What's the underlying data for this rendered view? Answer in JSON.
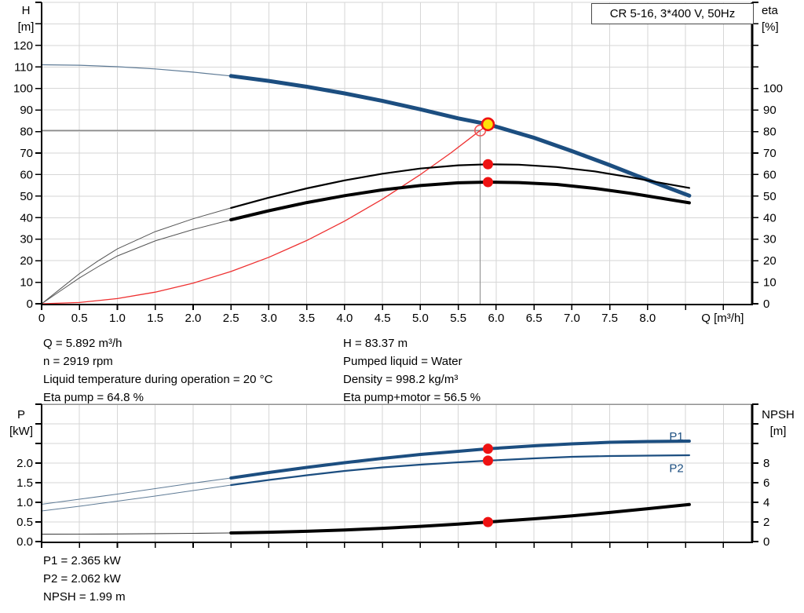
{
  "title_box": {
    "label": "CR 5-16, 3*400 V, 50Hz"
  },
  "axis_corner_labels": {
    "h": "H",
    "h_unit": "[m]",
    "eta": "eta",
    "eta_unit": "[%]",
    "p": "P",
    "p_unit": "[kW]",
    "npsh": "NPSH",
    "npsh_unit": "[m]"
  },
  "readouts": {
    "mid_left": [
      "Q = 5.892 m³/h",
      "n = 2919 rpm",
      "Liquid temperature during operation = 20 °C",
      "Eta pump = 64.8 %"
    ],
    "mid_right": [
      "H = 83.37 m",
      "Pumped liquid = Water",
      "Density = 998.2 kg/m³",
      "Eta pump+motor = 56.5 %"
    ],
    "bottom": [
      "P1 = 2.365 kW",
      "P2 = 2.062 kW",
      "NPSH = 1.99 m"
    ]
  },
  "colors": {
    "curve_blue": "#1c4e80",
    "thin_blue": "#5f7b96",
    "curve_black": "#000000",
    "thin_gray": "#555555",
    "system_red": "#ee3030",
    "dot_red": "#ee1212",
    "duty_yellow": "#ffe10a",
    "grid": "#d6d6d6",
    "crosshair": "#8a8a8a",
    "axis": "#000000"
  },
  "chart_data": [
    {
      "type": "line",
      "title": "CR 5-16, 3*400 V, 50Hz",
      "xlabel": "Q [m³/h]",
      "x_range": [
        0,
        9.38
      ],
      "x_grid_step": 0.5,
      "x_tick_labels": [
        "0",
        "0.5",
        "1.0",
        "1.5",
        "2.0",
        "2.5",
        "3.0",
        "3.5",
        "4.0",
        "4.5",
        "5.0",
        "5.5",
        "6.0",
        "6.5",
        "7.0",
        "7.5",
        "8.0"
      ],
      "x_title_q": 8.99,
      "top_border": false,
      "left_axis": {
        "name": "H [m]",
        "range": [
          0,
          140
        ],
        "tick_step": 10,
        "labels": [
          "0",
          "10",
          "20",
          "30",
          "40",
          "50",
          "60",
          "70",
          "80",
          "90",
          "100",
          "110",
          "120"
        ],
        "label_x_end": 42
      },
      "right_axis": {
        "name": "eta [%]",
        "range": [
          0,
          140
        ],
        "tick_step": 10,
        "labels": [
          "0",
          "10",
          "20",
          "30",
          "40",
          "50",
          "60",
          "70",
          "80",
          "90",
          "100"
        ],
        "label_x_start": 972
      },
      "crosshair": {
        "q": 5.79,
        "v": 80.5,
        "axis": "left"
      },
      "series": [
        {
          "name": "system-curve",
          "axis": "left",
          "color": "#ee3030",
          "width": 1.3,
          "thin_width": 1.3,
          "thin_color": "#ee3030",
          "split_q": null,
          "points": [
            [
              0,
              0
            ],
            [
              0.5,
              0.6
            ],
            [
              1,
              2.4
            ],
            [
              1.5,
              5.4
            ],
            [
              2,
              9.6
            ],
            [
              2.5,
              15
            ],
            [
              3,
              21.6
            ],
            [
              3.5,
              29.4
            ],
            [
              4,
              38.4
            ],
            [
              4.5,
              48.6
            ],
            [
              5,
              60
            ],
            [
              5.4,
              70
            ],
            [
              5.79,
              80.5
            ],
            [
              5.892,
              83.4
            ]
          ]
        },
        {
          "name": "H-Q",
          "axis": "left",
          "color": "#1c4e80",
          "width": 5,
          "thin_width": 1.2,
          "thin_color": "#5f7b96",
          "split_q": 2.5,
          "points": [
            [
              0,
              111
            ],
            [
              0.5,
              110.8
            ],
            [
              1,
              110.1
            ],
            [
              1.5,
              109.1
            ],
            [
              2,
              107.6
            ],
            [
              2.5,
              105.8
            ],
            [
              3,
              103.5
            ],
            [
              3.5,
              100.8
            ],
            [
              4,
              97.7
            ],
            [
              4.5,
              94.2
            ],
            [
              5,
              90.3
            ],
            [
              5.5,
              86.1
            ],
            [
              5.892,
              83.37
            ],
            [
              6.5,
              77.1
            ],
            [
              7,
              70.9
            ],
            [
              7.5,
              64.4
            ],
            [
              8,
              57.5
            ],
            [
              8.55,
              50.2
            ]
          ]
        },
        {
          "name": "eta-pump",
          "axis": "right",
          "color": "#000000",
          "width": 2.2,
          "thin_width": 1,
          "thin_color": "#555555",
          "split_q": 2.5,
          "points": [
            [
              0,
              0
            ],
            [
              0.25,
              7
            ],
            [
              0.5,
              14
            ],
            [
              0.75,
              20
            ],
            [
              1,
              25.5
            ],
            [
              1.5,
              33.5
            ],
            [
              2,
              39.5
            ],
            [
              2.5,
              44.5
            ],
            [
              3,
              49.3
            ],
            [
              3.5,
              53.6
            ],
            [
              4,
              57.3
            ],
            [
              4.5,
              60.4
            ],
            [
              5,
              62.8
            ],
            [
              5.5,
              64.3
            ],
            [
              5.892,
              64.8
            ],
            [
              6.3,
              64.6
            ],
            [
              6.8,
              63.5
            ],
            [
              7.3,
              61.5
            ],
            [
              7.8,
              58.6
            ],
            [
              8.2,
              56
            ],
            [
              8.55,
              53.8
            ]
          ]
        },
        {
          "name": "eta-pump-motor",
          "axis": "right",
          "color": "#000000",
          "width": 4,
          "thin_width": 1,
          "thin_color": "#555555",
          "split_q": 2.5,
          "points": [
            [
              0,
              0
            ],
            [
              0.25,
              6
            ],
            [
              0.5,
              12
            ],
            [
              0.75,
              17.3
            ],
            [
              1,
              22.2
            ],
            [
              1.5,
              29.2
            ],
            [
              2,
              34.5
            ],
            [
              2.5,
              39
            ],
            [
              3,
              43.2
            ],
            [
              3.5,
              47
            ],
            [
              4,
              50.2
            ],
            [
              4.5,
              52.9
            ],
            [
              5,
              54.9
            ],
            [
              5.5,
              56.2
            ],
            [
              5.892,
              56.5
            ],
            [
              6.3,
              56.3
            ],
            [
              6.8,
              55.4
            ],
            [
              7.3,
              53.6
            ],
            [
              7.8,
              51.2
            ],
            [
              8.2,
              48.9
            ],
            [
              8.55,
              46.9
            ]
          ]
        }
      ],
      "markers": [
        {
          "type": "open",
          "q": 5.79,
          "v": 80.5,
          "axis": "left"
        },
        {
          "type": "duty",
          "q": 5.892,
          "v": 83.37,
          "axis": "left"
        },
        {
          "type": "dot",
          "q": 5.892,
          "v": 64.8,
          "axis": "right"
        },
        {
          "type": "dot",
          "q": 5.892,
          "v": 56.5,
          "axis": "right"
        }
      ],
      "curve_labels": []
    },
    {
      "type": "line",
      "title": "",
      "xlabel": "",
      "x_range": [
        0,
        9.38
      ],
      "x_grid_step": 0.5,
      "x_tick_labels": [],
      "top_border": true,
      "left_axis": {
        "name": "P [kW]",
        "range": [
          0,
          3.5
        ],
        "tick_step": 0.5,
        "labels": [
          "0.0",
          "0.5",
          "1.0",
          "1.5",
          "2.0"
        ],
        "label_x_end": 42
      },
      "right_axis": {
        "name": "NPSH [m]",
        "range": [
          0,
          14
        ],
        "tick_step": 2,
        "labels": [
          "0",
          "2",
          "4",
          "6",
          "8"
        ],
        "label_x_start": 972
      },
      "crosshair": null,
      "series": [
        {
          "name": "P1",
          "axis": "left",
          "color": "#1c4e80",
          "width": 4,
          "thin_width": 1.1,
          "thin_color": "#5f7b96",
          "split_q": 2.5,
          "points": [
            [
              0,
              0.95
            ],
            [
              0.5,
              1.08
            ],
            [
              1,
              1.21
            ],
            [
              1.5,
              1.35
            ],
            [
              2,
              1.49
            ],
            [
              2.5,
              1.62
            ],
            [
              3,
              1.76
            ],
            [
              3.5,
              1.89
            ],
            [
              4,
              2.01
            ],
            [
              4.5,
              2.12
            ],
            [
              5,
              2.22
            ],
            [
              5.5,
              2.3
            ],
            [
              5.892,
              2.365
            ],
            [
              6.5,
              2.44
            ],
            [
              7,
              2.49
            ],
            [
              7.5,
              2.53
            ],
            [
              8,
              2.55
            ],
            [
              8.55,
              2.56
            ]
          ]
        },
        {
          "name": "P2",
          "axis": "left",
          "color": "#1c4e80",
          "width": 2.2,
          "thin_width": 1,
          "thin_color": "#5f7b96",
          "split_q": 2.5,
          "points": [
            [
              0,
              0.78
            ],
            [
              0.5,
              0.9
            ],
            [
              1,
              1.03
            ],
            [
              1.5,
              1.16
            ],
            [
              2,
              1.3
            ],
            [
              2.5,
              1.44
            ],
            [
              3,
              1.57
            ],
            [
              3.5,
              1.69
            ],
            [
              4,
              1.8
            ],
            [
              4.5,
              1.89
            ],
            [
              5,
              1.96
            ],
            [
              5.5,
              2.02
            ],
            [
              5.892,
              2.062
            ],
            [
              6.5,
              2.12
            ],
            [
              7,
              2.16
            ],
            [
              7.5,
              2.18
            ],
            [
              8,
              2.19
            ],
            [
              8.55,
              2.2
            ]
          ]
        },
        {
          "name": "NPSH",
          "axis": "right",
          "color": "#000000",
          "width": 4,
          "thin_width": 1.1,
          "thin_color": "#444444",
          "split_q": 2.5,
          "points": [
            [
              0,
              0.75
            ],
            [
              0.5,
              0.76
            ],
            [
              1,
              0.78
            ],
            [
              1.5,
              0.81
            ],
            [
              2,
              0.84
            ],
            [
              2.5,
              0.88
            ],
            [
              3,
              0.95
            ],
            [
              3.5,
              1.05
            ],
            [
              4,
              1.18
            ],
            [
              4.5,
              1.35
            ],
            [
              5,
              1.55
            ],
            [
              5.5,
              1.78
            ],
            [
              5.892,
              1.99
            ],
            [
              6.5,
              2.32
            ],
            [
              7,
              2.62
            ],
            [
              7.5,
              2.97
            ],
            [
              8,
              3.35
            ],
            [
              8.55,
              3.78
            ]
          ]
        }
      ],
      "markers": [
        {
          "type": "dot",
          "q": 5.892,
          "v": 2.365,
          "axis": "left"
        },
        {
          "type": "dot",
          "q": 5.892,
          "v": 2.062,
          "axis": "left"
        },
        {
          "type": "dot",
          "q": 5.892,
          "v": 1.99,
          "axis": "right"
        }
      ],
      "curve_labels": [
        {
          "text": "P1",
          "q": 8.38,
          "v": 2.68,
          "axis": "left"
        },
        {
          "text": "P2",
          "q": 8.38,
          "v": 1.87,
          "axis": "left"
        }
      ]
    }
  ]
}
